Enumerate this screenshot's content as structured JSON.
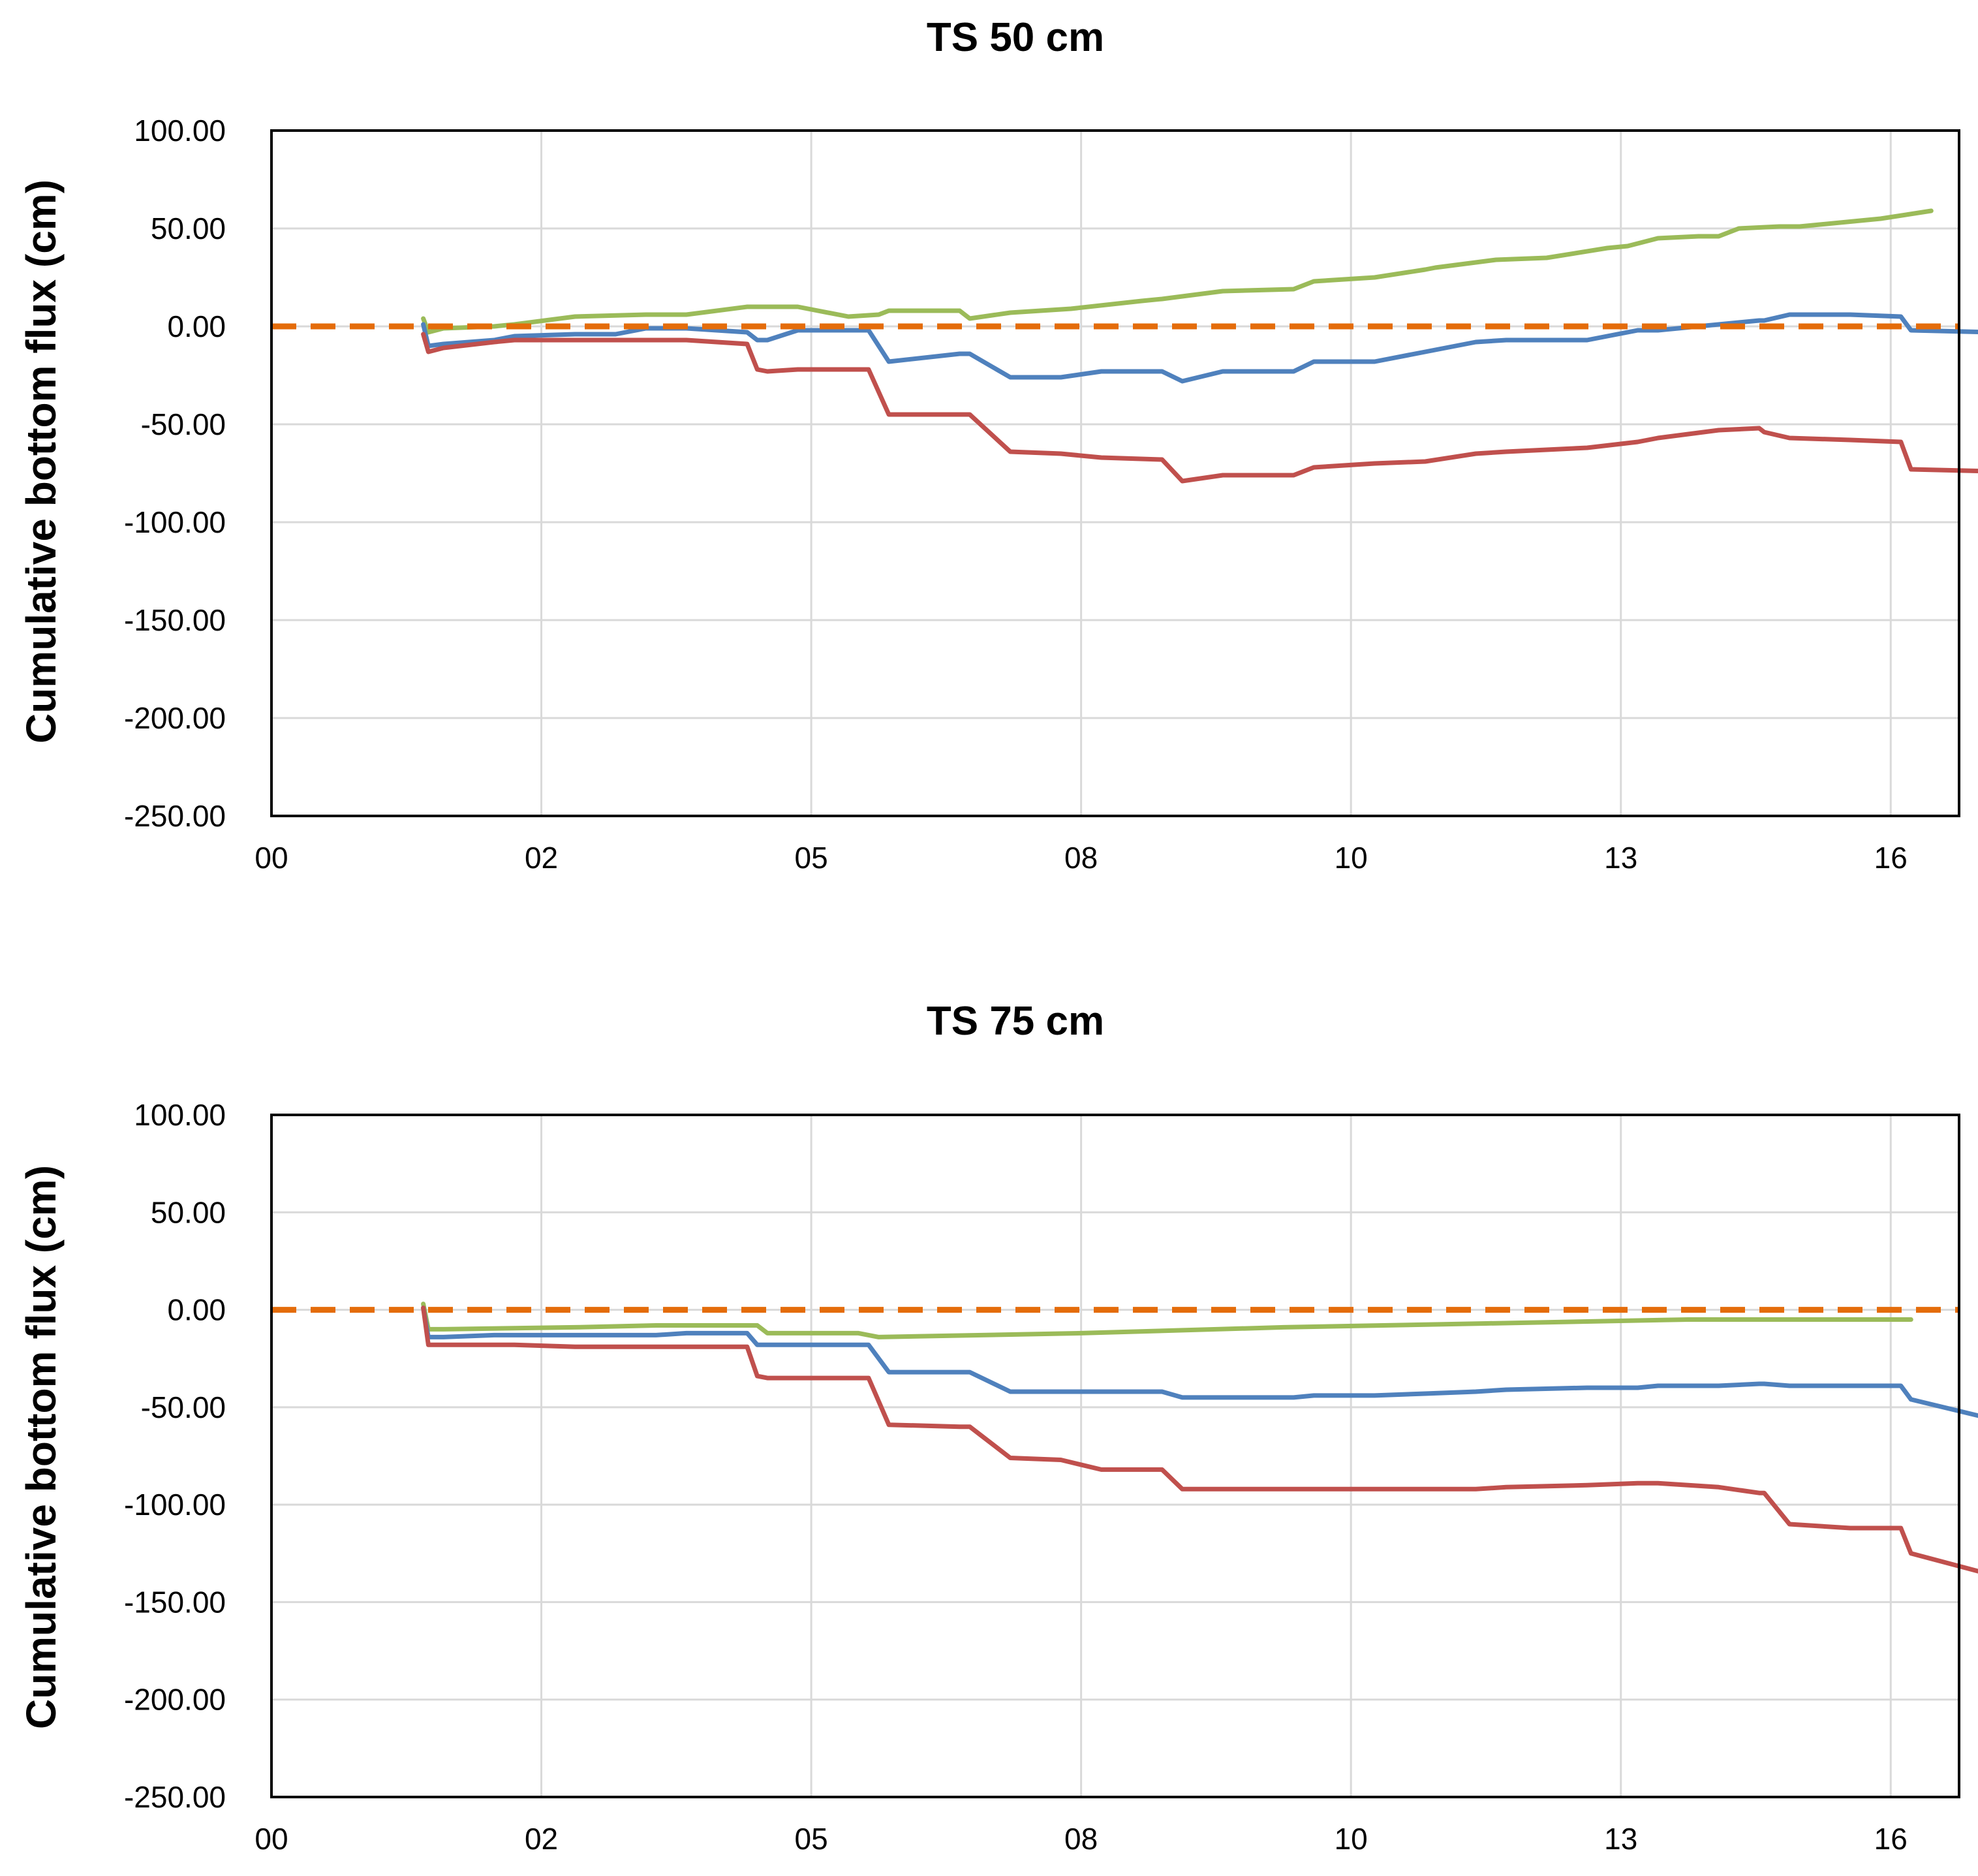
{
  "chart_data": [
    {
      "type": "line",
      "title": "TS 50 cm",
      "ylabel": "Cumulative bottom flux (cm)",
      "xlabel": "",
      "ylim": [
        -250,
        100
      ],
      "xlim": [
        0,
        16
      ],
      "y_ticks": [
        "100.00",
        "50.00",
        "0.00",
        "-50.00",
        "-100.00",
        "-150.00",
        "-200.00",
        "-250.00"
      ],
      "x_ticks": [
        "00",
        "02",
        "05",
        "08",
        "10",
        "13",
        "16"
      ],
      "grid": true,
      "reference_line": {
        "y": 0,
        "color": "#E46C0A",
        "style": "dashed"
      },
      "series": [
        {
          "name": "green",
          "color": "#9BBB59",
          "x": [
            1.5,
            1.55,
            1.7,
            2.2,
            2.4,
            3,
            3.7,
            3.8,
            4.1,
            4.7,
            4.8,
            5.2,
            5.7,
            6,
            6.1,
            6.3,
            6.8,
            6.9,
            7.3,
            7.9,
            8.6,
            8.8,
            9.4,
            10.1,
            10.3,
            10.9,
            11.4,
            11.5,
            12.1,
            12.6,
            13.2,
            13.4,
            13.7,
            14.1,
            14.3,
            14.5,
            14.9,
            15.1,
            15.7,
            15.9,
            16.4
          ],
          "y": [
            4,
            -3,
            -1,
            0,
            1,
            5,
            6,
            6,
            6,
            10,
            10,
            10,
            5,
            6,
            8,
            8,
            8,
            4,
            7,
            9,
            13,
            14,
            18,
            19,
            23,
            25,
            29,
            30,
            34,
            35,
            40,
            41,
            45,
            46,
            46,
            50,
            51,
            51,
            54,
            55,
            59
          ]
        },
        {
          "name": "blue",
          "color": "#4F81BD",
          "x": [
            1.5,
            1.55,
            1.7,
            2.2,
            2.4,
            3,
            3.4,
            3.7,
            3.8,
            4.1,
            4.7,
            4.8,
            4.9,
            5.2,
            5.8,
            5.9,
            6.1,
            6.8,
            6.9,
            7.3,
            7.8,
            8.2,
            8.8,
            9,
            9.4,
            10.1,
            10.3,
            10.9,
            11.4,
            11.9,
            12.2,
            13,
            13.5,
            13.7,
            14.3,
            14.7,
            14.75,
            15,
            15.6,
            16.1,
            16.2,
            17
          ],
          "y": [
            1,
            -10,
            -9,
            -7,
            -5,
            -4,
            -4,
            -1,
            -1,
            -1,
            -3,
            -7,
            -7,
            -2,
            -2,
            -2,
            -18,
            -14,
            -14,
            -26,
            -26,
            -23,
            -23,
            -28,
            -23,
            -23,
            -18,
            -18,
            -13,
            -8,
            -7,
            -7,
            -2,
            -2,
            1,
            3,
            3,
            6,
            6,
            5,
            -2,
            -3
          ]
        },
        {
          "name": "red",
          "color": "#C0504D",
          "x": [
            1.5,
            1.55,
            1.7,
            2.2,
            2.4,
            3,
            3.4,
            3.7,
            3.8,
            4.1,
            4.7,
            4.8,
            4.9,
            5.2,
            5.8,
            5.9,
            6.1,
            6.8,
            6.9,
            7.3,
            7.8,
            8.2,
            8.8,
            9,
            9.4,
            10.1,
            10.3,
            10.9,
            11.4,
            11.9,
            12.2,
            13,
            13.5,
            13.7,
            14.3,
            14.7,
            14.75,
            15,
            15.6,
            16.1,
            16.2,
            17
          ],
          "y": [
            -4,
            -13,
            -11,
            -8,
            -7,
            -7,
            -7,
            -7,
            -7,
            -7,
            -9,
            -22,
            -23,
            -22,
            -22,
            -22,
            -45,
            -45,
            -45,
            -64,
            -65,
            -67,
            -68,
            -79,
            -76,
            -76,
            -72,
            -70,
            -69,
            -65,
            -64,
            -62,
            -59,
            -57,
            -53,
            -52,
            -54,
            -57,
            -58,
            -59,
            -73,
            -74
          ]
        }
      ]
    },
    {
      "type": "line",
      "title": "TS 75 cm",
      "ylabel": "Cumulative bottom flux (cm)",
      "xlabel": "",
      "ylim": [
        -250,
        100
      ],
      "xlim": [
        0,
        16
      ],
      "y_ticks": [
        "100.00",
        "50.00",
        "0.00",
        "-50.00",
        "-100.00",
        "-150.00",
        "-200.00",
        "-250.00"
      ],
      "x_ticks": [
        "00",
        "02",
        "05",
        "08",
        "10",
        "13",
        "16"
      ],
      "grid": true,
      "reference_line": {
        "y": 0,
        "color": "#E46C0A",
        "style": "dashed"
      },
      "series": [
        {
          "name": "green",
          "color": "#9BBB59",
          "x": [
            1.5,
            1.55,
            1.7,
            3,
            3.8,
            4.1,
            4.8,
            4.9,
            5.2,
            5.8,
            6,
            8,
            10,
            12,
            14,
            16.2
          ],
          "y": [
            3,
            -10,
            -10,
            -9,
            -8,
            -8,
            -8,
            -12,
            -12,
            -12,
            -14,
            -12,
            -9,
            -7,
            -5,
            -5
          ]
        },
        {
          "name": "blue",
          "color": "#4F81BD",
          "x": [
            1.5,
            1.55,
            1.7,
            2.2,
            2.4,
            3,
            3.4,
            3.7,
            3.8,
            4.1,
            4.7,
            4.8,
            4.9,
            5.2,
            5.8,
            5.9,
            6.1,
            6.8,
            6.9,
            7.3,
            7.8,
            8.2,
            8.8,
            9,
            9.4,
            10.1,
            10.3,
            10.9,
            11.4,
            11.9,
            12.2,
            13,
            13.5,
            13.7,
            14.3,
            14.7,
            14.75,
            15,
            15.6,
            16.1,
            16.2,
            17
          ],
          "y": [
            1,
            -14,
            -14,
            -13,
            -13,
            -13,
            -13,
            -13,
            -13,
            -12,
            -12,
            -18,
            -18,
            -18,
            -18,
            -18,
            -32,
            -32,
            -32,
            -42,
            -42,
            -42,
            -42,
            -45,
            -45,
            -45,
            -44,
            -44,
            -43,
            -42,
            -41,
            -40,
            -40,
            -39,
            -39,
            -38,
            -38,
            -39,
            -39,
            -39,
            -46,
            -56
          ]
        },
        {
          "name": "red",
          "color": "#C0504D",
          "x": [
            1.5,
            1.55,
            1.7,
            2.2,
            2.4,
            3,
            3.4,
            3.7,
            3.8,
            4.1,
            4.7,
            4.8,
            4.9,
            5.2,
            5.8,
            5.9,
            6.1,
            6.8,
            6.9,
            7.3,
            7.8,
            8.2,
            8.8,
            9,
            9.4,
            10.1,
            10.3,
            10.9,
            11.4,
            11.9,
            12.2,
            13,
            13.5,
            13.7,
            14.3,
            14.7,
            14.75,
            15,
            15.6,
            16.1,
            16.2,
            17
          ],
          "y": [
            1,
            -18,
            -18,
            -18,
            -18,
            -19,
            -19,
            -19,
            -19,
            -19,
            -19,
            -34,
            -35,
            -35,
            -35,
            -35,
            -59,
            -60,
            -60,
            -76,
            -77,
            -82,
            -82,
            -92,
            -92,
            -92,
            -92,
            -92,
            -92,
            -92,
            -91,
            -90,
            -89,
            -89,
            -91,
            -94,
            -94,
            -110,
            -112,
            -112,
            -125,
            -136
          ]
        }
      ]
    }
  ]
}
